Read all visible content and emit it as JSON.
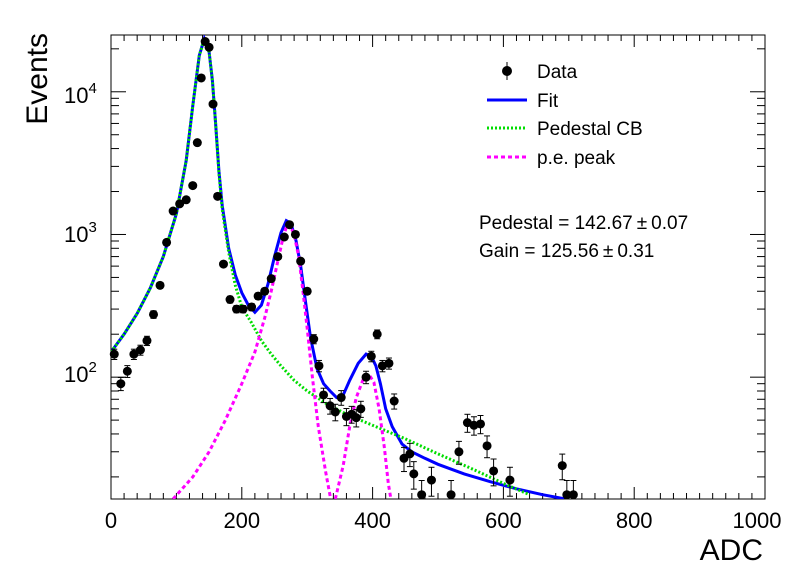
{
  "chart_data": {
    "type": "scatter",
    "xlabel": "ADC",
    "ylabel": "Events",
    "xlim": [
      0,
      1000
    ],
    "ylim": [
      14,
      25000
    ],
    "yscale": "log",
    "x_ticks": [
      {
        "value": 0,
        "label": "0"
      },
      {
        "value": 200,
        "label": "200"
      },
      {
        "value": 400,
        "label": "400"
      },
      {
        "value": 600,
        "label": "600"
      },
      {
        "value": 800,
        "label": "800"
      },
      {
        "value": 1000,
        "label": "1000"
      }
    ],
    "y_ticks": [
      {
        "value": 100,
        "base": "10",
        "exp": "2"
      },
      {
        "value": 1000,
        "base": "10",
        "exp": "3"
      },
      {
        "value": 10000,
        "base": "10",
        "exp": "4"
      }
    ],
    "legend": {
      "position": "top-right",
      "entries": [
        {
          "label": "Data",
          "style": "marker",
          "color": "#000000"
        },
        {
          "label": "Fit",
          "style": "solid",
          "color": "#0000ff"
        },
        {
          "label": "Pedestal CB",
          "style": "dotted",
          "color": "#00dd00"
        },
        {
          "label": "p.e. peak",
          "style": "dashed",
          "color": "#ff00ff"
        }
      ]
    },
    "annotations": [
      {
        "label": "Pedestal = 142.67",
        "pm": "±",
        "value": "0.07"
      },
      {
        "label": "Gain = 125.56",
        "pm": "±",
        "value": "0.31"
      }
    ],
    "series": [
      {
        "name": "Data",
        "kind": "points_with_errors",
        "color": "#000000",
        "points": [
          [
            5,
            145
          ],
          [
            15,
            90
          ],
          [
            25,
            110
          ],
          [
            35,
            145
          ],
          [
            45,
            155
          ],
          [
            55,
            180
          ],
          [
            65,
            275
          ],
          [
            75,
            440
          ],
          [
            85,
            880
          ],
          [
            95,
            1460
          ],
          [
            105,
            1640
          ],
          [
            115,
            1750
          ],
          [
            125,
            2200
          ],
          [
            132,
            4400
          ],
          [
            138,
            12500
          ],
          [
            144,
            22500
          ],
          [
            150,
            20500
          ],
          [
            156,
            8200
          ],
          [
            163,
            1850
          ],
          [
            172,
            620
          ],
          [
            182,
            350
          ],
          [
            192,
            300
          ],
          [
            202,
            300
          ],
          [
            215,
            310
          ],
          [
            225,
            370
          ],
          [
            235,
            400
          ],
          [
            245,
            490
          ],
          [
            255,
            700
          ],
          [
            265,
            960
          ],
          [
            273,
            1170
          ],
          [
            282,
            1000
          ],
          [
            290,
            650
          ],
          [
            300,
            400
          ],
          [
            310,
            185
          ],
          [
            318,
            120
          ],
          [
            325,
            75
          ],
          [
            335,
            63
          ],
          [
            343,
            57
          ],
          [
            352,
            72
          ],
          [
            360,
            53
          ],
          [
            368,
            55
          ],
          [
            375,
            52
          ],
          [
            382,
            60
          ],
          [
            390,
            100
          ],
          [
            398,
            140
          ],
          [
            407,
            200
          ],
          [
            415,
            120
          ],
          [
            425,
            125
          ],
          [
            433,
            68
          ],
          [
            448,
            27
          ],
          [
            457,
            29
          ],
          [
            463,
            21
          ],
          [
            475,
            15
          ],
          [
            490,
            19
          ],
          [
            520,
            15
          ],
          [
            532,
            30
          ],
          [
            545,
            48
          ],
          [
            555,
            46
          ],
          [
            565,
            47
          ],
          [
            575,
            33
          ],
          [
            585,
            22
          ],
          [
            610,
            19
          ],
          [
            690,
            24
          ],
          [
            697,
            15
          ],
          [
            707,
            15
          ]
        ]
      },
      {
        "name": "Fit",
        "kind": "line",
        "color": "#0000ff",
        "points": [
          [
            0,
            150
          ],
          [
            20,
            200
          ],
          [
            40,
            280
          ],
          [
            60,
            420
          ],
          [
            80,
            700
          ],
          [
            100,
            1400
          ],
          [
            115,
            3300
          ],
          [
            125,
            8000
          ],
          [
            135,
            18000
          ],
          [
            142.7,
            23500
          ],
          [
            150,
            19000
          ],
          [
            155,
            12000
          ],
          [
            160,
            6000
          ],
          [
            165,
            2800
          ],
          [
            170,
            1600
          ],
          [
            180,
            800
          ],
          [
            190,
            520
          ],
          [
            200,
            390
          ],
          [
            210,
            320
          ],
          [
            220,
            285
          ],
          [
            230,
            320
          ],
          [
            240,
            450
          ],
          [
            250,
            700
          ],
          [
            260,
            1030
          ],
          [
            268,
            1250
          ],
          [
            275,
            1200
          ],
          [
            283,
            900
          ],
          [
            290,
            600
          ],
          [
            297,
            350
          ],
          [
            305,
            190
          ],
          [
            315,
            115
          ],
          [
            325,
            90
          ],
          [
            335,
            80
          ],
          [
            345,
            72
          ],
          [
            355,
            75
          ],
          [
            365,
            95
          ],
          [
            378,
            125
          ],
          [
            390,
            145
          ],
          [
            398,
            140
          ],
          [
            405,
            120
          ],
          [
            412,
            90
          ],
          [
            420,
            60
          ],
          [
            430,
            45
          ],
          [
            445,
            34
          ],
          [
            460,
            30
          ],
          [
            480,
            27
          ],
          [
            500,
            24.5
          ],
          [
            540,
            21
          ],
          [
            580,
            18.5
          ],
          [
            620,
            16.5
          ],
          [
            660,
            15
          ],
          [
            695,
            14
          ]
        ]
      },
      {
        "name": "Pedestal CB",
        "kind": "line",
        "color": "#00dd00",
        "points": [
          [
            0,
            150
          ],
          [
            20,
            200
          ],
          [
            40,
            280
          ],
          [
            60,
            420
          ],
          [
            80,
            700
          ],
          [
            100,
            1400
          ],
          [
            115,
            3300
          ],
          [
            125,
            8000
          ],
          [
            135,
            18000
          ],
          [
            142.7,
            23500
          ],
          [
            150,
            19000
          ],
          [
            155,
            12000
          ],
          [
            160,
            6000
          ],
          [
            165,
            2700
          ],
          [
            170,
            1500
          ],
          [
            180,
            750
          ],
          [
            190,
            440
          ],
          [
            200,
            310
          ],
          [
            215,
            240
          ],
          [
            230,
            180
          ],
          [
            245,
            145
          ],
          [
            260,
            120
          ],
          [
            280,
            95
          ],
          [
            300,
            80
          ],
          [
            330,
            65
          ],
          [
            360,
            55
          ],
          [
            400,
            46
          ],
          [
            450,
            37
          ],
          [
            500,
            29
          ],
          [
            550,
            23
          ],
          [
            600,
            18
          ],
          [
            640,
            15
          ]
        ]
      },
      {
        "name": "p.e. peak",
        "kind": "line",
        "color": "#ff00ff",
        "points": [
          [
            95,
            14
          ],
          [
            125,
            20
          ],
          [
            150,
            30
          ],
          [
            175,
            50
          ],
          [
            200,
            90
          ],
          [
            220,
            150
          ],
          [
            235,
            260
          ],
          [
            245,
            400
          ],
          [
            255,
            650
          ],
          [
            262,
            900
          ],
          [
            268,
            1130
          ],
          [
            273,
            1180
          ],
          [
            280,
            1000
          ],
          [
            287,
            700
          ],
          [
            293,
            420
          ],
          [
            300,
            220
          ],
          [
            308,
            100
          ],
          [
            317,
            45
          ],
          [
            328,
            22
          ],
          [
            336,
            14
          ]
        ]
      },
      {
        "name": "p.e. peak 2",
        "kind": "line",
        "color": "#ff00ff",
        "points": [
          [
            343,
            14
          ],
          [
            355,
            24
          ],
          [
            365,
            45
          ],
          [
            375,
            72
          ],
          [
            385,
            95
          ],
          [
            394,
            105
          ],
          [
            402,
            92
          ],
          [
            410,
            60
          ],
          [
            418,
            32
          ],
          [
            424,
            18
          ],
          [
            428,
            14
          ]
        ]
      }
    ]
  }
}
